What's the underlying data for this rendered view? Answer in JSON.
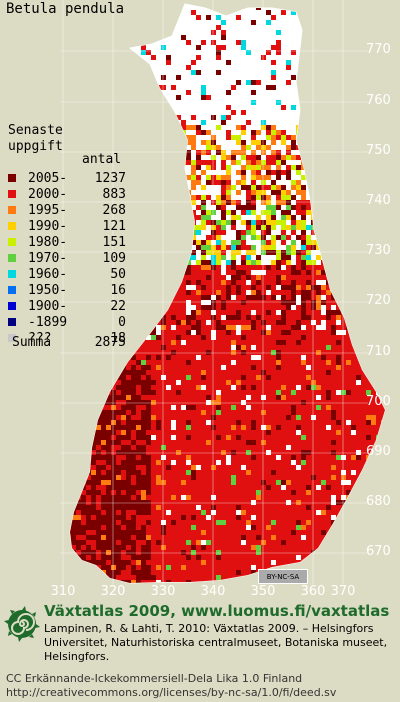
{
  "species": "Betula pendula",
  "legend": {
    "title_line1": "Senaste",
    "title_line2": "uppgift",
    "count_header": "antal",
    "rows": [
      {
        "period": "2005-",
        "count": "1237",
        "color": "#7a0000"
      },
      {
        "period": "2000-",
        "count": "883",
        "color": "#e01010"
      },
      {
        "period": "1995-",
        "count": "268",
        "color": "#ff7a10"
      },
      {
        "period": "1990-",
        "count": "121",
        "color": "#ffd000"
      },
      {
        "period": "1980-",
        "count": "151",
        "color": "#c8f000"
      },
      {
        "period": "1970-",
        "count": "109",
        "color": "#60d040"
      },
      {
        "period": "1960-",
        "count": "50",
        "color": "#00d8e0"
      },
      {
        "period": "1950-",
        "count": "16",
        "color": "#0070f0"
      },
      {
        "period": "1900-",
        "count": "22",
        "color": "#0000d0"
      },
      {
        "period": "-1899",
        "count": "0",
        "color": "#000080"
      },
      {
        "period": "???",
        "count": "18",
        "color": "#c8c8c8"
      }
    ],
    "total_label": "Summa",
    "total_value": "2875"
  },
  "axes": {
    "y_labels": [
      "770",
      "760",
      "750",
      "740",
      "730",
      "720",
      "710",
      "700",
      "690",
      "680",
      "670"
    ],
    "x_labels": [
      "310",
      "320",
      "330",
      "340",
      "350",
      "360",
      "370"
    ]
  },
  "badge": "BY-NC-SA",
  "footer": {
    "title": "Växtatlas 2009, www.luomus.fi/vaxtatlas",
    "citation": "Lampinen, R. & Lahti, T. 2010: Växtatlas 2009. – Helsingfors Universitet, Naturhistoriska centralmuseet, Botaniska museet, Helsingfors.",
    "license_line1": "CC Erkännande-Ickekommersiell-Dela Lika 1.0 Finland",
    "license_line2": "http://creativecommons.org/licenses/by-nc-sa/1.0/fi/deed.sv"
  },
  "colors": {
    "background": "#dcdcc4",
    "land_base": "#e01010",
    "footer_title": "#1f6b2c"
  }
}
